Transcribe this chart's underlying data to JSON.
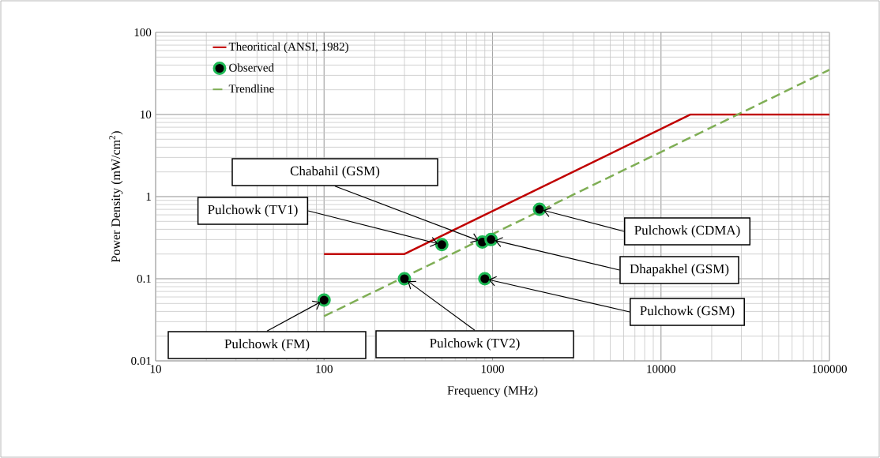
{
  "chart_data": {
    "type": "line",
    "xlabel": "Frequency (MHz)",
    "ylabel": "Power Density (mW/cm$^{2}$)",
    "log": "xy",
    "grid": true,
    "legend": "top left",
    "xlim": [
      10,
      100000
    ],
    "ylim": [
      0.01,
      100
    ],
    "xticks": [
      10,
      100,
      1000,
      10000,
      100000
    ],
    "yticks": [
      0.01,
      0.1,
      1,
      10,
      100
    ],
    "series": [
      {
        "name": "Theoritical  (ANSI, 1982)",
        "type": "line",
        "color": "#c00000",
        "line_style": "solid",
        "marker": "none",
        "x": [
          100,
          300,
          15000,
          100000
        ],
        "values": [
          0.2,
          0.2,
          10,
          10
        ]
      },
      {
        "name": "Observed",
        "type": "scatter",
        "color": "#1db954",
        "marker": "circle",
        "x": [
          100,
          300,
          500,
          870,
          980,
          900,
          1900
        ],
        "values": [
          0.055,
          0.1,
          0.26,
          0.28,
          0.3,
          0.1,
          0.7
        ]
      },
      {
        "name": "Trendline",
        "type": "line",
        "color": "#7fae55",
        "line_style": "dashed",
        "marker": "none",
        "x": [
          100,
          100000
        ],
        "values": [
          0.035,
          35
        ]
      }
    ],
    "annotations": [
      {
        "text": "Pulchowk (FM)",
        "x": 100,
        "y": 0.055
      },
      {
        "text": "Pulchowk (TV2)",
        "x": 300,
        "y": 0.1
      },
      {
        "text": "Pulchowk (TV1)",
        "x": 500,
        "y": 0.26
      },
      {
        "text": "Chabahil (GSM)",
        "x": 870,
        "y": 0.28
      },
      {
        "text": "Dhapakhel (GSM)",
        "x": 980,
        "y": 0.3
      },
      {
        "text": "Pulchowk (GSM)",
        "x": 900,
        "y": 0.1
      },
      {
        "text": "Pulchowk (CDMA)",
        "x": 1900,
        "y": 0.7
      }
    ]
  }
}
